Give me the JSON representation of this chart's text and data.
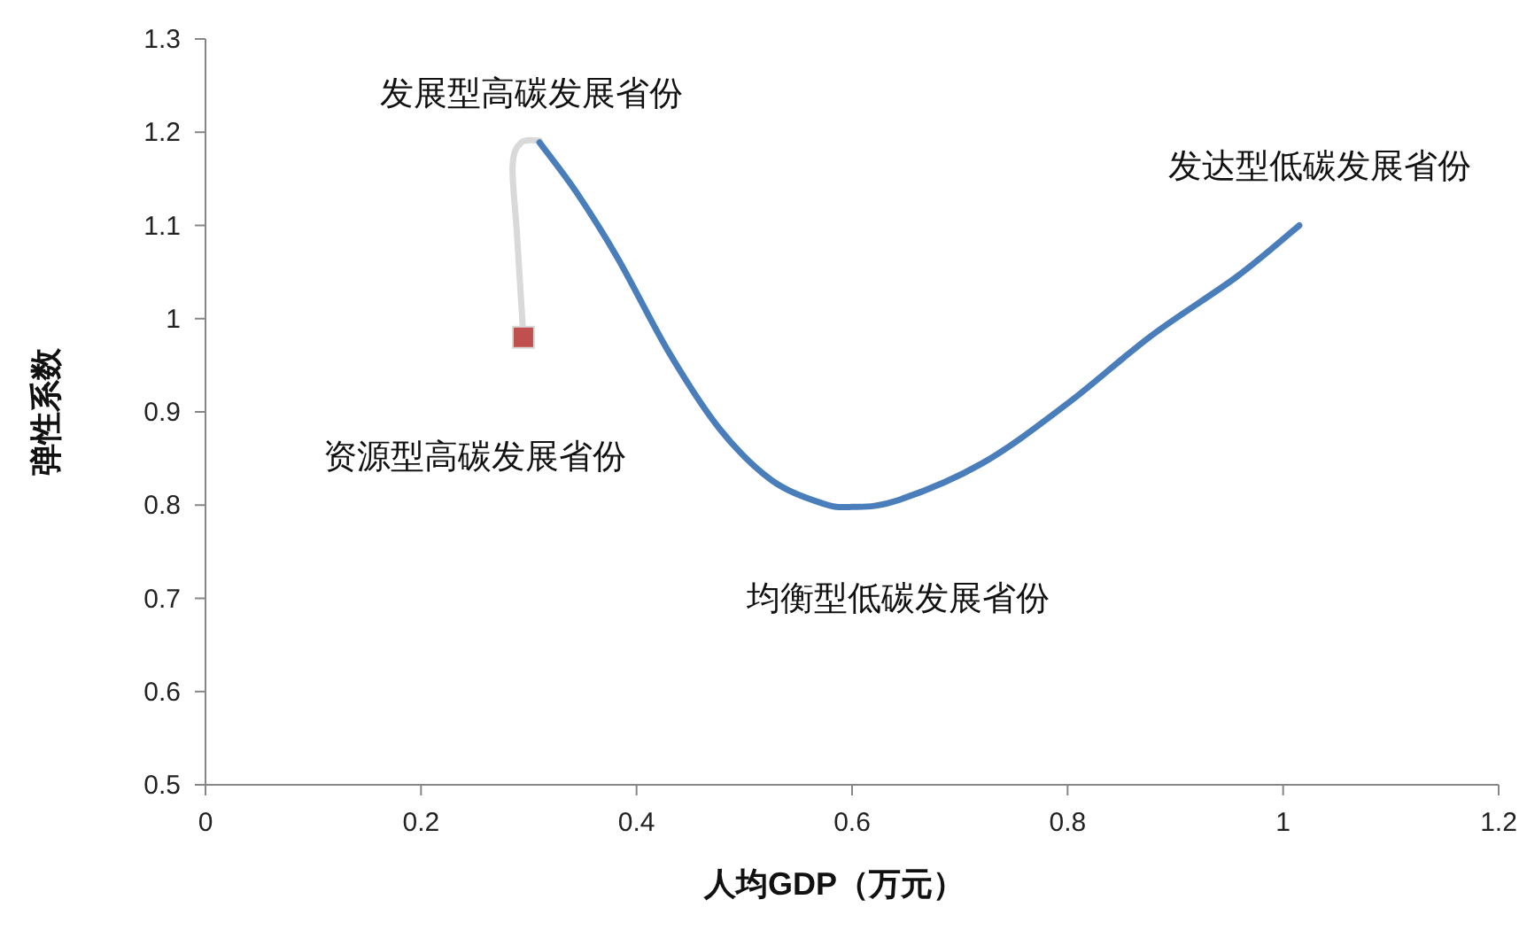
{
  "chart_data": {
    "type": "line",
    "xlabel": "人均GDP（万元）",
    "ylabel": "弹性系数",
    "xlim": [
      0,
      1.2
    ],
    "ylim": [
      0.5,
      1.3
    ],
    "xticks": [
      0,
      0.2,
      0.4,
      0.6,
      0.8,
      1,
      1.2
    ],
    "yticks": [
      0.5,
      0.6,
      0.7,
      0.8,
      0.9,
      1,
      1.1,
      1.2,
      1.3
    ],
    "grid": false,
    "series": [
      {
        "color": "#d9d9d9",
        "x": [
          0.295,
          0.289,
          0.285,
          0.293,
          0.31
        ],
        "values": [
          0.98,
          1.091,
          1.164,
          1.189,
          1.191
        ]
      },
      {
        "color": "#4a7ebb",
        "x": [
          0.31,
          0.344,
          0.383,
          0.43,
          0.477,
          0.525,
          0.572,
          0.599,
          0.642,
          0.721,
          0.8,
          0.878,
          0.957,
          1.015
        ],
        "values": [
          1.189,
          1.136,
          1.064,
          0.964,
          0.882,
          0.827,
          0.802,
          0.798,
          0.805,
          0.845,
          0.909,
          0.982,
          1.045,
          1.1
        ]
      },
      {
        "type": "scatter",
        "marker": "square",
        "color": "#c0504d",
        "x": [
          0.295
        ],
        "values": [
          0.98
        ]
      }
    ],
    "annotations": [
      "发展型高碳发展省份",
      "发达型低碳发展省份",
      "资源型高碳发展省份",
      "均衡型低碳发展省份"
    ]
  }
}
